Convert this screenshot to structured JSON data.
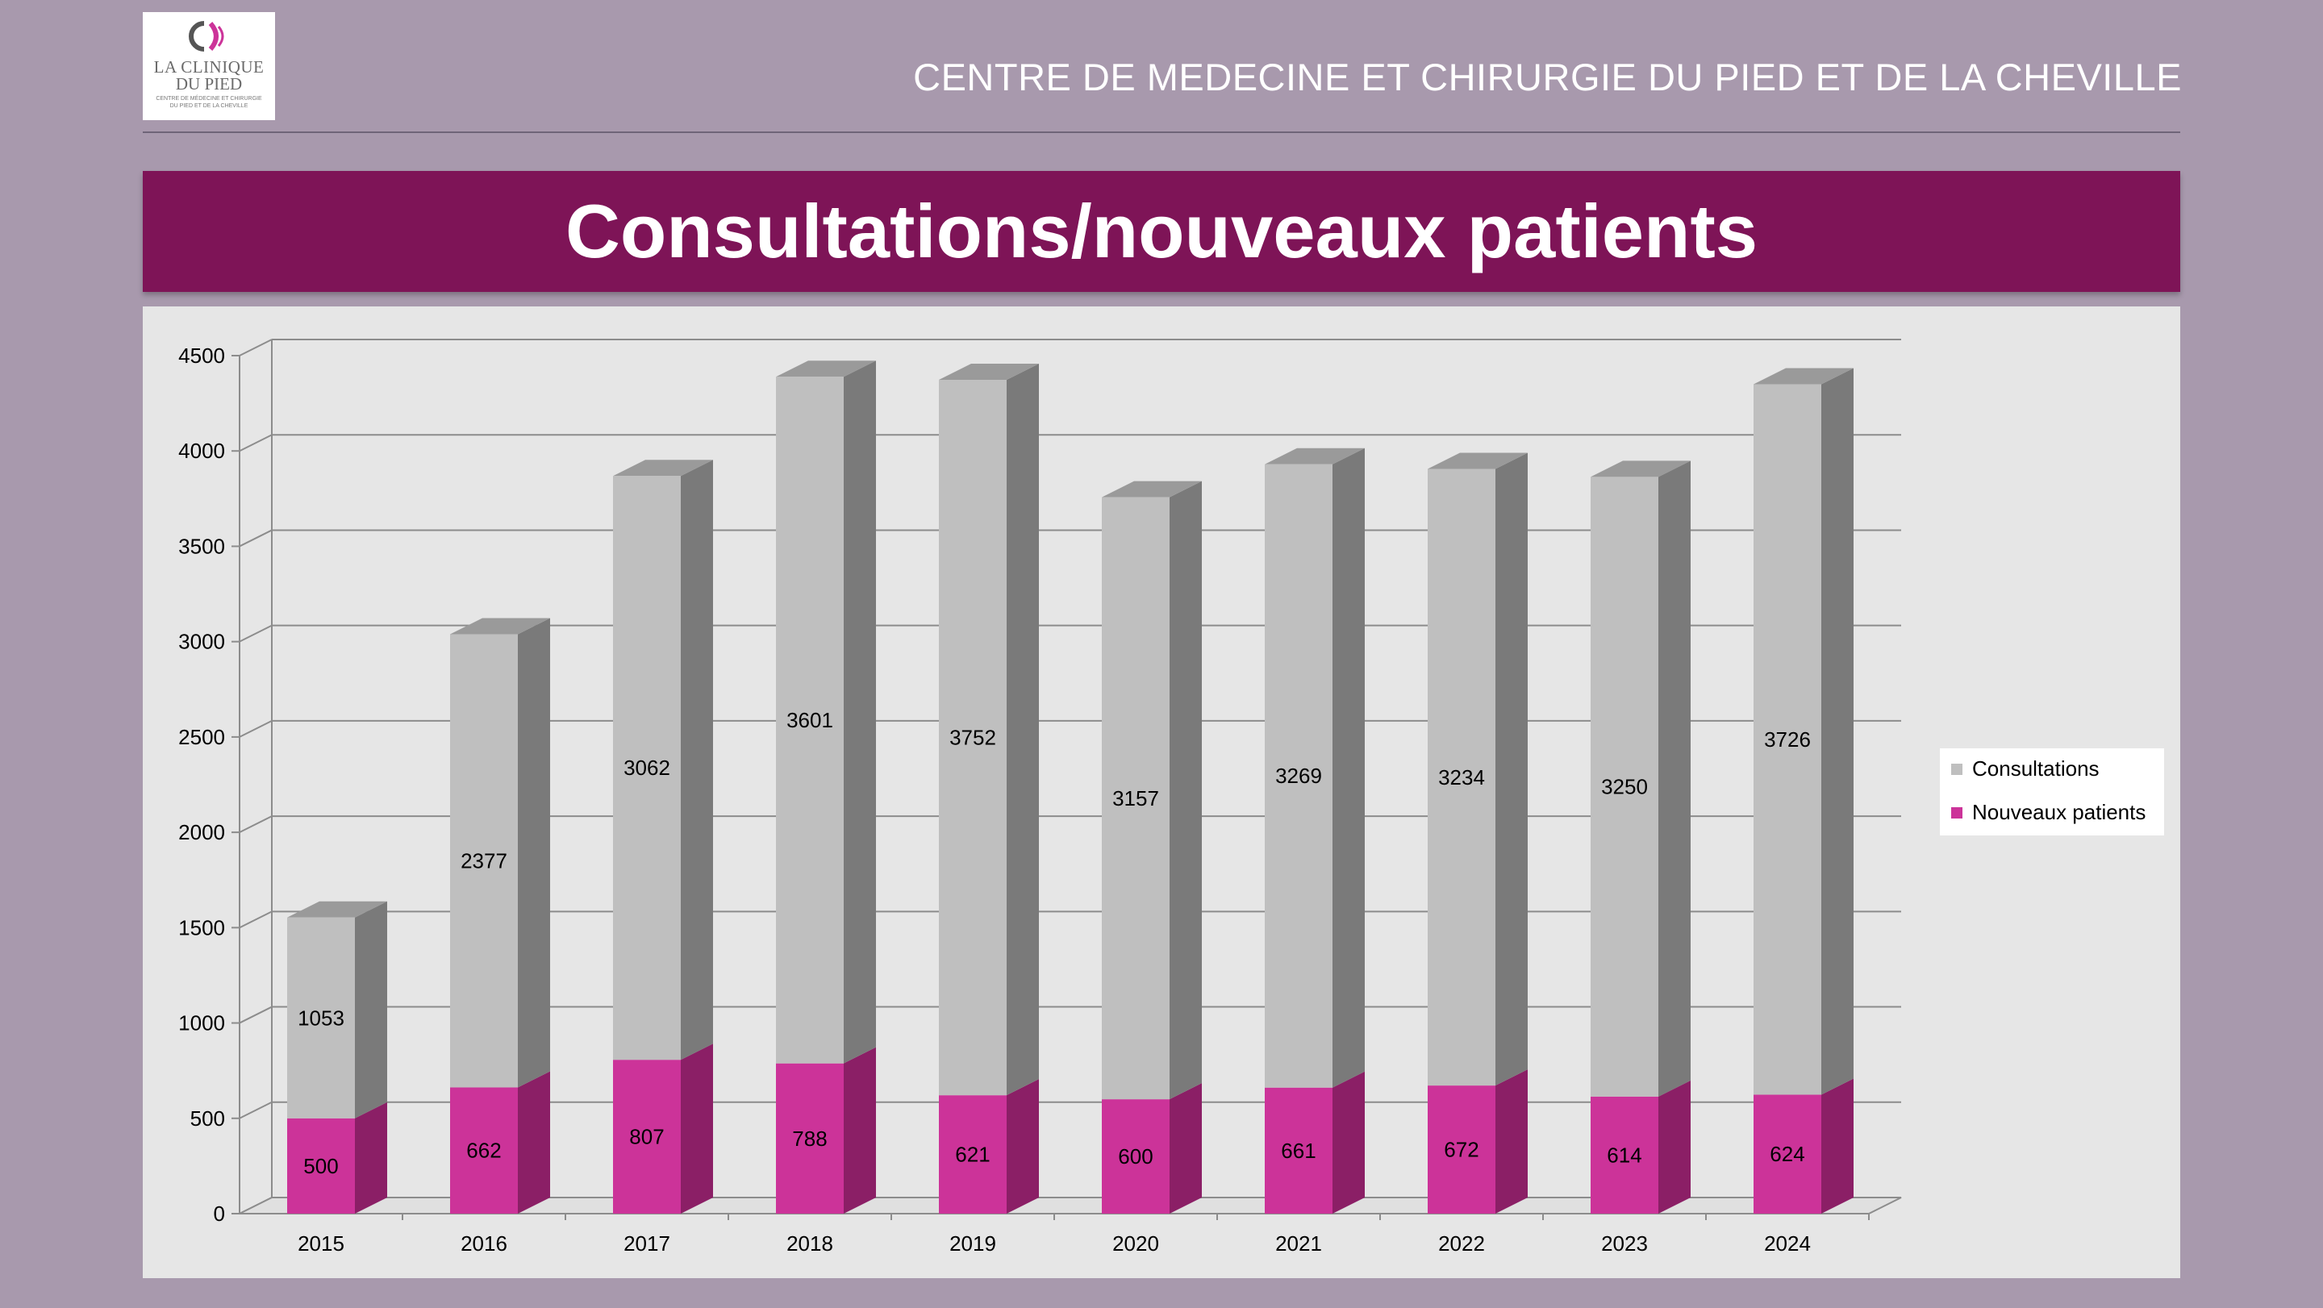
{
  "header": {
    "logo_name_line1": "LA CLINIQUE",
    "logo_name_line2": "DU PIED",
    "logo_subtitle": "CENTRE DE MÉDECINE ET CHIRURGIE DU PIED ET DE LA CHEVILLE",
    "org_title": "CENTRE DE MEDECINE ET CHIRURGIE DU PIED ET DE LA CHEVILLE"
  },
  "banner": {
    "title": "Consultations/nouveaux patients"
  },
  "colors": {
    "background": "#a899ad",
    "banner": "#7e1457",
    "consultations": "#bfbfbf",
    "nouveaux_patients": "#cc3399"
  },
  "chart_data": {
    "type": "bar",
    "stacked": true,
    "title": "",
    "xlabel": "",
    "ylabel": "",
    "ylim": [
      0,
      4500
    ],
    "yticks": [
      0,
      500,
      1000,
      1500,
      2000,
      2500,
      3000,
      3500,
      4000,
      4500
    ],
    "grid": true,
    "legend_position": "right",
    "categories": [
      "2015",
      "2016",
      "2017",
      "2018",
      "2019",
      "2020",
      "2021",
      "2022",
      "2023",
      "2024"
    ],
    "series": [
      {
        "name": "Nouveaux patients",
        "values": [
          500,
          662,
          807,
          788,
          621,
          600,
          661,
          672,
          614,
          624
        ]
      },
      {
        "name": "Consultations",
        "values": [
          1053,
          2377,
          3062,
          3601,
          3752,
          3157,
          3269,
          3234,
          3250,
          3726
        ]
      }
    ]
  },
  "legend": {
    "items": [
      {
        "label": "Consultations"
      },
      {
        "label": "Nouveaux patients"
      }
    ]
  }
}
